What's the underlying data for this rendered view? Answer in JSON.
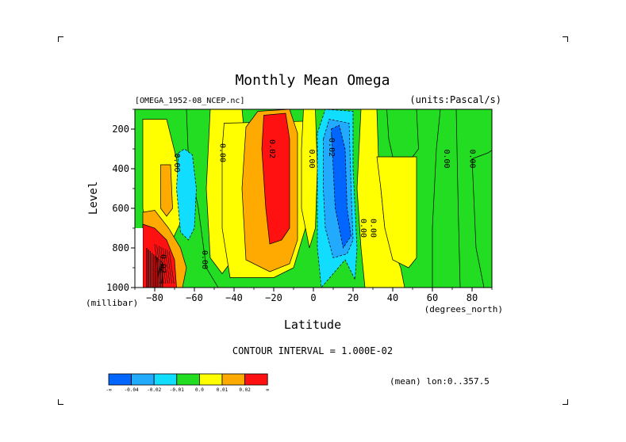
{
  "chart_data": {
    "type": "contour",
    "title": "Monthly Mean Omega",
    "file_label": "[OMEGA_1952-08_NCEP.nc]",
    "units_label": "(units:Pascal/s)",
    "ylabel": "Level",
    "ylabel_units": "(millibar)",
    "xlabel": "Latitude",
    "xlabel_units": "(degrees_north)",
    "xlim": [
      -90,
      90
    ],
    "ylim": [
      1000,
      100
    ],
    "x_ticks": [
      -80,
      -60,
      -40,
      -20,
      0,
      20,
      40,
      60,
      80
    ],
    "y_ticks": [
      200,
      400,
      600,
      800,
      1000
    ],
    "contour_interval_text": "CONTOUR INTERVAL = 1.000E-02",
    "mean_text": "(mean) lon:0..357.5",
    "colorbar": {
      "labels": [
        "-∞",
        "-0.04",
        "-0.02",
        "-0.01",
        "0.0",
        "0.01",
        "0.02",
        "∞"
      ],
      "colors": [
        "#0066ff",
        "#22aaff",
        "#11ddff",
        "#22dd22",
        "#ffff00",
        "#ffaa00",
        "#ff1111"
      ]
    },
    "regions": [
      {
        "level": "green",
        "poly": [
          [
            -91,
            100
          ],
          [
            -64,
            100
          ],
          [
            -63,
            350
          ],
          [
            -58,
            600
          ],
          [
            -54,
            900
          ],
          [
            -48,
            1000
          ],
          [
            -91,
            1000
          ]
        ]
      },
      {
        "level": "yellow",
        "poly": [
          [
            -86,
            150
          ],
          [
            -74,
            150
          ],
          [
            -69,
            350
          ],
          [
            -66,
            650
          ],
          [
            -73,
            800
          ],
          [
            -82,
            800
          ],
          [
            -86,
            600
          ]
        ]
      },
      {
        "level": "orange",
        "poly": [
          [
            -77,
            380
          ],
          [
            -72,
            380
          ],
          [
            -71,
            600
          ],
          [
            -74,
            640
          ],
          [
            -77,
            600
          ]
        ]
      },
      {
        "level": "cyan",
        "poly": [
          [
            -68,
            320
          ],
          [
            -65,
            300
          ],
          [
            -61,
            330
          ],
          [
            -59,
            500
          ],
          [
            -60,
            700
          ],
          [
            -63,
            760
          ],
          [
            -67,
            720
          ],
          [
            -69,
            500
          ]
        ]
      },
      {
        "level": "orange",
        "poly": [
          [
            -86,
            620
          ],
          [
            -80,
            610
          ],
          [
            -73,
            700
          ],
          [
            -67,
            800
          ],
          [
            -64,
            900
          ],
          [
            -66,
            1000
          ],
          [
            -86,
            1000
          ]
        ]
      },
      {
        "level": "red",
        "poly": [
          [
            -86,
            680
          ],
          [
            -80,
            700
          ],
          [
            -74,
            760
          ],
          [
            -70,
            860
          ],
          [
            -69,
            1000
          ],
          [
            -86,
            1000
          ]
        ]
      },
      {
        "level": "yellow",
        "poly": [
          [
            -52,
            100
          ],
          [
            -36,
            100
          ],
          [
            -34,
            300
          ],
          [
            -38,
            600
          ],
          [
            -40,
            850
          ],
          [
            -46,
            930
          ],
          [
            -52,
            850
          ],
          [
            -54,
            500
          ]
        ]
      },
      {
        "level": "yellow",
        "poly": [
          [
            -45,
            170
          ],
          [
            -4,
            160
          ],
          [
            -2,
            300
          ],
          [
            -4,
            700
          ],
          [
            -10,
            900
          ],
          [
            -20,
            950
          ],
          [
            -42,
            950
          ],
          [
            -46,
            700
          ],
          [
            -46,
            300
          ]
        ]
      },
      {
        "level": "orange",
        "poly": [
          [
            -34,
            190
          ],
          [
            -28,
            110
          ],
          [
            -12,
            100
          ],
          [
            -8,
            220
          ],
          [
            -8,
            760
          ],
          [
            -12,
            880
          ],
          [
            -22,
            920
          ],
          [
            -34,
            860
          ],
          [
            -36,
            500
          ]
        ]
      },
      {
        "level": "red",
        "poly": [
          [
            -25,
            130
          ],
          [
            -14,
            120
          ],
          [
            -12,
            250
          ],
          [
            -12,
            700
          ],
          [
            -16,
            760
          ],
          [
            -22,
            780
          ],
          [
            -24,
            600
          ],
          [
            -26,
            300
          ]
        ]
      },
      {
        "level": "yellow",
        "poly": [
          [
            -5,
            100
          ],
          [
            1,
            100
          ],
          [
            2,
            400
          ],
          [
            1,
            700
          ],
          [
            -2,
            800
          ],
          [
            -6,
            600
          ],
          [
            -6,
            300
          ]
        ]
      },
      {
        "level": "cyan",
        "poly": [
          [
            2,
            220
          ],
          [
            6,
            100
          ],
          [
            20,
            110
          ],
          [
            20,
            400
          ],
          [
            22,
            800
          ],
          [
            21,
            960
          ],
          [
            16,
            860
          ],
          [
            10,
            930
          ],
          [
            4,
            1000
          ],
          [
            2,
            800
          ]
        ]
      },
      {
        "level": "blue2",
        "poly": [
          [
            5,
            250
          ],
          [
            8,
            150
          ],
          [
            18,
            170
          ],
          [
            19,
            500
          ],
          [
            20,
            760
          ],
          [
            17,
            830
          ],
          [
            10,
            850
          ],
          [
            6,
            700
          ],
          [
            5,
            500
          ]
        ]
      },
      {
        "level": "blue1",
        "poly": [
          [
            9,
            200
          ],
          [
            13,
            180
          ],
          [
            16,
            300
          ],
          [
            17,
            600
          ],
          [
            19,
            740
          ],
          [
            15,
            800
          ],
          [
            11,
            600
          ],
          [
            10,
            400
          ]
        ]
      },
      {
        "level": "yellow",
        "poly": [
          [
            24,
            100
          ],
          [
            32,
            100
          ],
          [
            33,
            400
          ],
          [
            36,
            700
          ],
          [
            44,
            900
          ],
          [
            46,
            1000
          ],
          [
            26,
            1000
          ],
          [
            24,
            800
          ],
          [
            22,
            500
          ]
        ]
      },
      {
        "level": "yellow",
        "poly": [
          [
            32,
            340
          ],
          [
            52,
            340
          ],
          [
            52,
            850
          ],
          [
            48,
            900
          ],
          [
            40,
            860
          ],
          [
            36,
            700
          ],
          [
            34,
            500
          ]
        ]
      },
      {
        "level": "green",
        "poly": [
          [
            37,
            100
          ],
          [
            52,
            100
          ],
          [
            53,
            300
          ],
          [
            50,
            340
          ],
          [
            40,
            340
          ],
          [
            38,
            250
          ]
        ]
      },
      {
        "level": "green",
        "poly": [
          [
            64,
            100
          ],
          [
            72,
            100
          ],
          [
            73,
            600
          ],
          [
            74,
            1000
          ],
          [
            60,
            1000
          ],
          [
            60,
            700
          ],
          [
            62,
            300
          ]
        ]
      },
      {
        "level": "green",
        "poly": [
          [
            80,
            350
          ],
          [
            88,
            320
          ],
          [
            91,
            300
          ],
          [
            91,
            1000
          ],
          [
            86,
            1000
          ],
          [
            82,
            800
          ]
        ]
      }
    ],
    "contour_labels": [
      {
        "x": -70,
        "y": 370,
        "text": "0.00"
      },
      {
        "x": -47,
        "y": 320,
        "text": "0.00"
      },
      {
        "x": -22,
        "y": 300,
        "text": "0.02"
      },
      {
        "x": -2,
        "y": 350,
        "text": "0.00"
      },
      {
        "x": 8,
        "y": 280,
        "text": "-0.02"
      },
      {
        "x": 24,
        "y": 700,
        "text": "0.00"
      },
      {
        "x": 29,
        "y": 700,
        "text": "0.00"
      },
      {
        "x": -56,
        "y": 860,
        "text": "0.00"
      },
      {
        "x": -77,
        "y": 880,
        "text": "0.02"
      },
      {
        "x": 66,
        "y": 350,
        "text": "0.00"
      },
      {
        "x": 79,
        "y": 350,
        "text": "0.00"
      }
    ]
  }
}
